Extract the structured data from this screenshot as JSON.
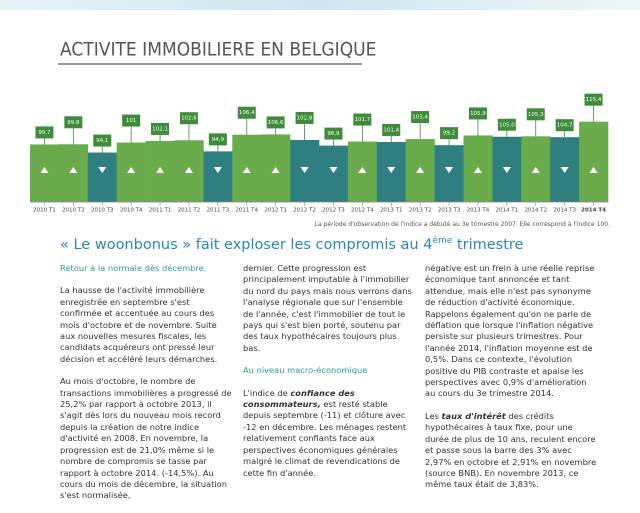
{
  "title": "ACTIVITE IMMOBILIERE EN BELGIQUE",
  "chart_data": {
    "type": "bar",
    "categories": [
      "2010 T1",
      "2010 T2",
      "2010 T3",
      "2010 T4",
      "2011 T1",
      "2011 T2",
      "2011 T3",
      "2011 T4",
      "2012 T1",
      "2012 T2",
      "2012 T3",
      "2012 T4",
      "2013 T1",
      "2013 T2",
      "2013 T3",
      "2013 T4",
      "2014 T1",
      "2014 T2",
      "2014 T3",
      "2014 T4"
    ],
    "values": [
      99.7,
      99.8,
      94.1,
      101,
      102.1,
      102.6,
      94.9,
      106.4,
      106.6,
      102.8,
      98.9,
      101.7,
      101.4,
      103.4,
      99.2,
      105.9,
      105.0,
      105.3,
      104.7,
      115.4
    ],
    "value_labels": [
      "99,7",
      "99,8",
      "94,1",
      "101",
      "102,1",
      "102,6",
      "94,9",
      "106,4",
      "106,6",
      "102,8",
      "98,9",
      "101,7",
      "101,4",
      "103,4",
      "99,2",
      "105,9",
      "105,0",
      "105,3",
      "104,7",
      "115,4"
    ],
    "ylim": [
      60,
      120
    ],
    "colors": {
      "up": "#6aab4c",
      "down": "#2f7f80",
      "label": "#3e8b3a"
    }
  },
  "note": "La période d'observation de l'indice a débuté au 3e trimestre 2007. Elle correspond à l'indice 100.",
  "headline": {
    "text": "« Le woonbonus » fait exploser les compromis au 4",
    "sup": "ème",
    "end": " trimestre"
  },
  "article": {
    "col1": {
      "heading": "Retour à la normale dès décembre.",
      "p1": "La hausse de l'activité immobilière enregistrée en septembre s'est confirmée et accentuée au cours des mois d'octobre et de novembre. Suite aux nouvelles mesures fiscales, les candidats acquéreurs ont pressé leur décision et accéléré leurs démarches.",
      "p2": "Au mois d'octobre, le nombre de transactions immobilières a progressé de 25,2% par rapport à octobre 2013, il s'agit dès lors du nouveau mois record depuis la création de notre indice d'activité en 2008. En novembre, la progression est de 21,0% même si le nombre de compromis se tasse par rapport à octobre 2014. (-14,5%). Au cours du mois de décembre, la situation s'est normalisée,"
    },
    "col2": {
      "p1": "dernier. Cette progression est principalement imputable à l'immobilier du nord du pays mais nous verrons dans l'analyse régionale que sur l'ensemble de l'année, c'est l'immobilier de tout le pays qui s'est bien porté, soutenu par des taux hypothécaires toujours plus bas.",
      "heading": "Au niveau macro-économique",
      "p2a": "L'indice de ",
      "p2b": "confiance des consommateurs,",
      "p2c": " est resté stable depuis septembre (-11) et clôture avec -12 en décembre. Les ménages restent relativement confiants face aux perspectives économiques générales malgré le climat de revendications de cette fin d'année."
    },
    "col3": {
      "p1": "négative est un frein à une réelle reprise économique tant annoncée et tant attendue, mais elle n'est pas synonyme de réduction d'activité économique. Rappelons également qu'on ne parle de déflation que lorsque l'inflation négative persiste sur plusieurs trimestres. Pour l'année 2014, l'inflation moyenne est de 0,5%. Dans ce contexte, l'évolution positive du PIB contraste et apaise les perspectives avec 0,9% d'amélioration au cours du 3e trimestre 2014.",
      "p2a": "Les ",
      "p2b": "taux d'intérêt",
      "p2c": " des crédits hypothécaires à taux fixe, pour une durée de plus de 10 ans, reculent encore et passe sous la barre des 3% avec 2,97% en octobre et 2,91% en novembre (source BNB). En novembre 2013, ce même taux était de 3,83%."
    }
  }
}
